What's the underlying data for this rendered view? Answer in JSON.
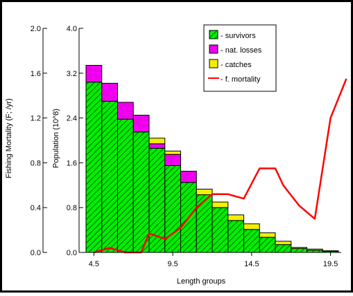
{
  "chart_data": {
    "type": "bar",
    "stacked": true,
    "xlabel": "Length groups",
    "ylabel_left": "Fishing Mortality (F; /yr)",
    "ylabel_right": "Population (10^8)",
    "x": [
      4.5,
      5.5,
      6.5,
      7.5,
      8.5,
      9.5,
      10.5,
      11.5,
      12.5,
      13.5,
      14.5,
      15.5,
      16.5,
      17.5,
      18.5,
      19.5
    ],
    "x_ticks": [
      "4.5",
      "9.5",
      "14.5",
      "19.5"
    ],
    "x_tick_values": [
      4.5,
      9.5,
      14.5,
      19.5
    ],
    "ylim_population": [
      0,
      4.0
    ],
    "yticks_population": [
      "0.0",
      "0.8",
      "1.6",
      "2.4",
      "3.2",
      "4.0"
    ],
    "ylim_mortality": [
      0,
      2.0
    ],
    "yticks_mortality": [
      "0.0",
      "0.4",
      "0.8",
      "1.2",
      "1.6",
      "2.0"
    ],
    "series": [
      {
        "name": "- survivors",
        "kind": "bar",
        "color": "#00ee00",
        "pattern": "hatch",
        "values": [
          3.04,
          2.7,
          2.38,
          2.15,
          1.86,
          1.55,
          1.25,
          1.03,
          0.8,
          0.57,
          0.41,
          0.27,
          0.14,
          0.07,
          0.04,
          0.02
        ]
      },
      {
        "name": "- nat. losses",
        "kind": "bar",
        "color": "#ee00ee",
        "values": [
          0.3,
          0.32,
          0.3,
          0.3,
          0.08,
          0.2,
          0.2,
          0.0,
          0.0,
          0.0,
          0.0,
          0.0,
          0.0,
          0.0,
          0.0,
          0.0
        ]
      },
      {
        "name": "- catches",
        "kind": "bar",
        "color": "#f0f000",
        "values": [
          0.0,
          0.0,
          0.0,
          0.0,
          0.1,
          0.06,
          0.0,
          0.1,
          0.1,
          0.1,
          0.1,
          0.08,
          0.06,
          0.02,
          0.02,
          0.01
        ]
      },
      {
        "name": "- f. mortality",
        "kind": "line",
        "color": "#ff0000",
        "axis": "left",
        "x": [
          4.5,
          5.5,
          6.5,
          7.5,
          8.0,
          9.0,
          10.0,
          11.0,
          12.0,
          13.0,
          14.0,
          15.0,
          16.0,
          16.5,
          17.5,
          18.5,
          19.5,
          20.5
        ],
        "values": [
          0.0,
          0.04,
          0.0,
          0.0,
          0.17,
          0.12,
          0.22,
          0.4,
          0.52,
          0.52,
          0.48,
          0.75,
          0.75,
          0.6,
          0.42,
          0.3,
          1.2,
          1.55
        ]
      }
    ],
    "legend": {
      "placement": "top-right"
    }
  }
}
